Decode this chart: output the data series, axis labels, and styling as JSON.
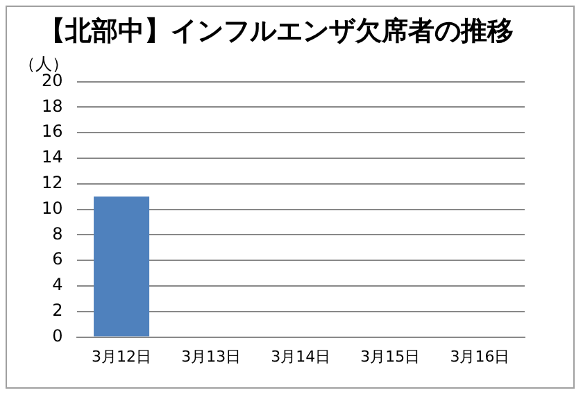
{
  "chart_data": {
    "type": "bar",
    "title": "【北部中】インフルエンザ欠席者の推移",
    "ylabel": "（人）",
    "categories": [
      "3月12日",
      "3月13日",
      "3月14日",
      "3月15日",
      "3月16日"
    ],
    "values": [
      11,
      0,
      0,
      0,
      0
    ],
    "color": "#4f81bd",
    "ylim": [
      0,
      20
    ],
    "yticks": [
      0,
      2,
      4,
      6,
      8,
      10,
      12,
      14,
      16,
      18,
      20
    ],
    "grid": "y"
  }
}
